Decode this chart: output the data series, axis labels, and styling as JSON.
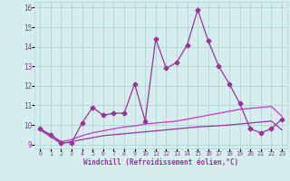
{
  "xlabel": "Windchill (Refroidissement éolien,°C)",
  "x": [
    0,
    1,
    2,
    3,
    4,
    5,
    6,
    7,
    8,
    9,
    10,
    11,
    12,
    13,
    14,
    15,
    16,
    17,
    18,
    19,
    20,
    21,
    22,
    23
  ],
  "line1": [
    9.8,
    9.5,
    9.1,
    9.1,
    10.1,
    10.9,
    10.5,
    10.6,
    10.6,
    12.1,
    10.2,
    14.4,
    12.9,
    13.2,
    14.1,
    15.9,
    14.3,
    13.0,
    12.1,
    11.1,
    9.8,
    9.6,
    9.8,
    10.3
  ],
  "line2": [
    9.8,
    9.5,
    9.15,
    9.25,
    9.45,
    9.6,
    9.7,
    9.8,
    9.9,
    9.95,
    10.05,
    10.1,
    10.15,
    10.2,
    10.3,
    10.4,
    10.5,
    10.6,
    10.7,
    10.8,
    10.85,
    10.9,
    10.95,
    10.45
  ],
  "line3": [
    9.75,
    9.4,
    9.05,
    9.15,
    9.25,
    9.35,
    9.45,
    9.5,
    9.55,
    9.6,
    9.65,
    9.7,
    9.75,
    9.8,
    9.85,
    9.9,
    9.93,
    9.96,
    10.0,
    10.05,
    10.1,
    10.15,
    10.2,
    9.75
  ],
  "line_color": "#993399",
  "line_color2": "#cc33cc",
  "bg_color": "#d5eeed",
  "grid_color": "#b0d4d4",
  "ylim": [
    8.8,
    16.3
  ],
  "yticks": [
    9,
    10,
    11,
    12,
    13,
    14,
    15,
    16
  ],
  "xlim": [
    -0.5,
    23.5
  ]
}
